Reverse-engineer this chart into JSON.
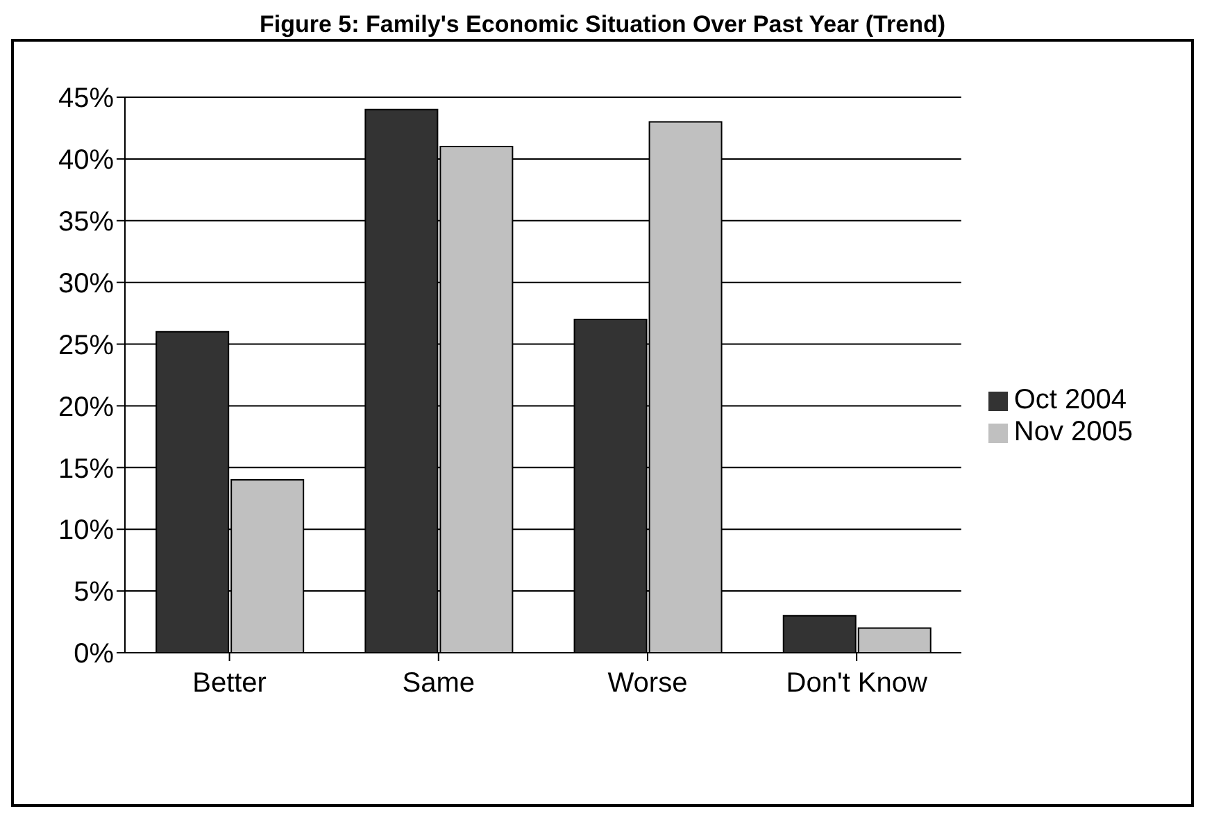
{
  "chart_data": {
    "type": "bar",
    "title": "Figure 5: Family's Economic Situation Over Past Year (Trend)",
    "categories": [
      "Better",
      "Same",
      "Worse",
      "Don't Know"
    ],
    "series": [
      {
        "name": "Oct 2004",
        "color": "#333333",
        "values": [
          26,
          44,
          27,
          3
        ]
      },
      {
        "name": "Nov 2005",
        "color": "#c0c0c0",
        "values": [
          14,
          41,
          43,
          2
        ]
      }
    ],
    "ylim": [
      0,
      45
    ],
    "yticks": [
      {
        "value": 0,
        "label": "0%"
      },
      {
        "value": 5,
        "label": "5%"
      },
      {
        "value": 10,
        "label": "10%"
      },
      {
        "value": 15,
        "label": "15%"
      },
      {
        "value": 20,
        "label": "20%"
      },
      {
        "value": 25,
        "label": "25%"
      },
      {
        "value": 30,
        "label": "30%"
      },
      {
        "value": 35,
        "label": "35%"
      },
      {
        "value": 40,
        "label": "40%"
      },
      {
        "value": 45,
        "label": "45%"
      }
    ],
    "grid": "y",
    "legend": "right"
  }
}
